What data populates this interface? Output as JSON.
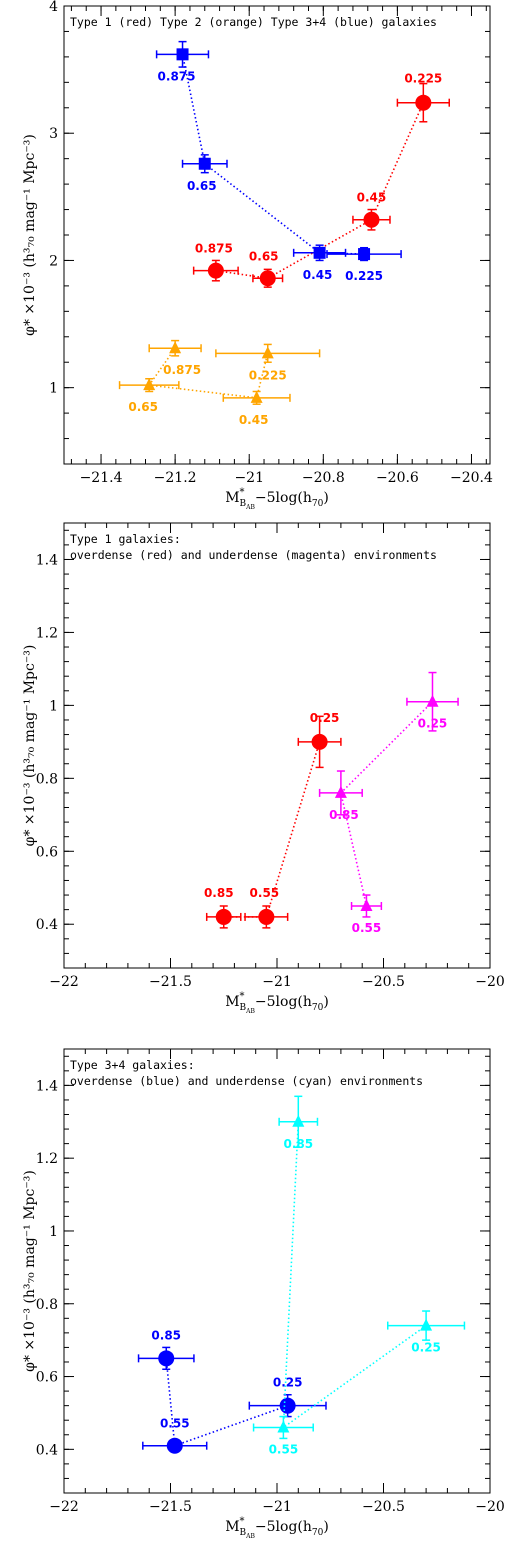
{
  "chart_data": [
    {
      "type": "scatter",
      "annotation_lines": [
        "Type 1 (red) Type 2 (orange) Type 3+4 (blue) galaxies"
      ],
      "xlabel": {
        "main": "M",
        "sup": "*",
        "sub": "B",
        "subsub": "AB",
        "rest": "−5log(h",
        "restsub": "70",
        "close": ")"
      },
      "ylabel": "φ* ×10⁻³ (h³₇₀ mag⁻¹ Mpc⁻³)",
      "xlim": [
        -21.5,
        -20.35
      ],
      "ylim": [
        0.4,
        4.0
      ],
      "xticks": [
        -21.4,
        -21.2,
        -21.0,
        -20.8,
        -20.6,
        -20.4
      ],
      "xtick_labels": [
        "−21.4",
        "−21.2",
        "−21",
        "−20.8",
        "−20.6",
        "−20.4"
      ],
      "yticks": [
        1,
        2,
        3,
        4
      ],
      "ytick_labels": [
        "1",
        "2",
        "3",
        "4"
      ],
      "grid": false,
      "series": [
        {
          "color": "#ff0000",
          "marker": "circle",
          "points": [
            {
              "x": -20.53,
              "y": 3.24,
              "xerr": 0.07,
              "yerr": 0.15,
              "label": "0.225"
            },
            {
              "x": -20.67,
              "y": 2.32,
              "xerr": 0.05,
              "yerr": 0.08,
              "label": "0.45"
            },
            {
              "x": -20.95,
              "y": 1.86,
              "xerr": 0.04,
              "yerr": 0.07,
              "label": "0.65"
            },
            {
              "x": -21.09,
              "y": 1.92,
              "xerr": 0.06,
              "yerr": 0.08,
              "label": "0.875"
            }
          ]
        },
        {
          "color": "#0000ff",
          "marker": "square",
          "points": [
            {
              "x": -21.18,
              "y": 3.62,
              "xerr": 0.07,
              "yerr": 0.1,
              "label": "0.875"
            },
            {
              "x": -21.12,
              "y": 2.76,
              "xerr": 0.06,
              "yerr": 0.07,
              "label": "0.65"
            },
            {
              "x": -20.81,
              "y": 2.06,
              "xerr": 0.07,
              "yerr": 0.06,
              "label": "0.45"
            },
            {
              "x": -20.69,
              "y": 2.05,
              "xerr": 0.1,
              "yerr": 0.05,
              "label": "0.225"
            }
          ]
        },
        {
          "color": "#ffa500",
          "marker": "triangle",
          "points": [
            {
              "x": -21.2,
              "y": 1.31,
              "xerr": 0.07,
              "yerr": 0.06,
              "label": "0.875"
            },
            {
              "x": -21.27,
              "y": 1.02,
              "xerr": 0.08,
              "yerr": 0.05,
              "label": "0.65"
            },
            {
              "x": -20.98,
              "y": 0.92,
              "xerr": 0.09,
              "yerr": 0.05,
              "label": "0.45"
            },
            {
              "x": -20.95,
              "y": 1.27,
              "xerr": 0.14,
              "yerr": 0.07,
              "label": "0.225"
            }
          ]
        }
      ]
    },
    {
      "type": "scatter",
      "annotation_lines": [
        "Type 1 galaxies:",
        "overdense (red) and underdense (magenta) environments"
      ],
      "xlabel": {
        "main": "M",
        "sup": "*",
        "sub": "B",
        "subsub": "AB",
        "rest": "−5log(h",
        "restsub": "70",
        "close": ")"
      },
      "ylabel": "φ* ×10⁻³ (h³₇₀ mag⁻¹ Mpc⁻³)",
      "xlim": [
        -22,
        -20
      ],
      "ylim": [
        0.28,
        1.5
      ],
      "xticks": [
        -22,
        -21.5,
        -21,
        -20.5,
        -20
      ],
      "xtick_labels": [
        "−22",
        "−21.5",
        "−21",
        "−20.5",
        "−20"
      ],
      "yticks": [
        0.4,
        0.6,
        0.8,
        1.0,
        1.2,
        1.4
      ],
      "ytick_labels": [
        "0.4",
        "0.6",
        "0.8",
        "1",
        "1.2",
        "1.4"
      ],
      "grid": false,
      "series": [
        {
          "color": "#ff0000",
          "marker": "circle",
          "points": [
            {
              "x": -20.8,
              "y": 0.9,
              "xerr": 0.1,
              "yerr": 0.07,
              "label": "0.25"
            },
            {
              "x": -21.05,
              "y": 0.42,
              "xerr": 0.1,
              "yerr": 0.03,
              "label": "0.55"
            },
            {
              "x": -21.25,
              "y": 0.42,
              "xerr": 0.08,
              "yerr": 0.03,
              "label": "0.85"
            }
          ]
        },
        {
          "color": "#ff00ff",
          "marker": "triangle",
          "points": [
            {
              "x": -20.27,
              "y": 1.01,
              "xerr": 0.12,
              "yerr": 0.08,
              "label": "0.25"
            },
            {
              "x": -20.7,
              "y": 0.76,
              "xerr": 0.1,
              "yerr": 0.06,
              "label": "0.85"
            },
            {
              "x": -20.58,
              "y": 0.45,
              "xerr": 0.07,
              "yerr": 0.03,
              "label": "0.55"
            }
          ]
        }
      ]
    },
    {
      "type": "scatter",
      "annotation_lines": [
        "Type 3+4 galaxies:",
        "overdense (blue) and underdense (cyan) environments"
      ],
      "xlabel": {
        "main": "M",
        "sup": "*",
        "sub": "B",
        "subsub": "AB",
        "rest": "−5log(h",
        "restsub": "70",
        "close": ")"
      },
      "ylabel": "φ* ×10⁻³ (h³₇₀ mag⁻¹ Mpc⁻³)",
      "xlim": [
        -22,
        -20
      ],
      "ylim": [
        0.28,
        1.5
      ],
      "xticks": [
        -22,
        -21.5,
        -21,
        -20.5,
        -20
      ],
      "xtick_labels": [
        "−22",
        "−21.5",
        "−21",
        "−20.5",
        "−20"
      ],
      "yticks": [
        0.4,
        0.6,
        0.8,
        1.0,
        1.2,
        1.4
      ],
      "ytick_labels": [
        "0.4",
        "0.6",
        "0.8",
        "1",
        "1.2",
        "1.4"
      ],
      "grid": false,
      "series": [
        {
          "color": "#0000ff",
          "marker": "circle",
          "points": [
            {
              "x": -21.52,
              "y": 0.65,
              "xerr": 0.13,
              "yerr": 0.03,
              "label": "0.85"
            },
            {
              "x": -21.48,
              "y": 0.41,
              "xerr": 0.15,
              "yerr": 0.01,
              "label": "0.55"
            },
            {
              "x": -20.95,
              "y": 0.52,
              "xerr": 0.18,
              "yerr": 0.03,
              "label": "0.25"
            }
          ]
        },
        {
          "color": "#00ffff",
          "marker": "triangle",
          "points": [
            {
              "x": -20.9,
              "y": 1.3,
              "xerr": 0.09,
              "yerr": 0.07,
              "label": "0.85"
            },
            {
              "x": -20.97,
              "y": 0.46,
              "xerr": 0.14,
              "yerr": 0.03,
              "label": "0.55"
            },
            {
              "x": -20.3,
              "y": 0.74,
              "xerr": 0.18,
              "yerr": 0.04,
              "label": "0.25"
            }
          ]
        }
      ]
    }
  ]
}
